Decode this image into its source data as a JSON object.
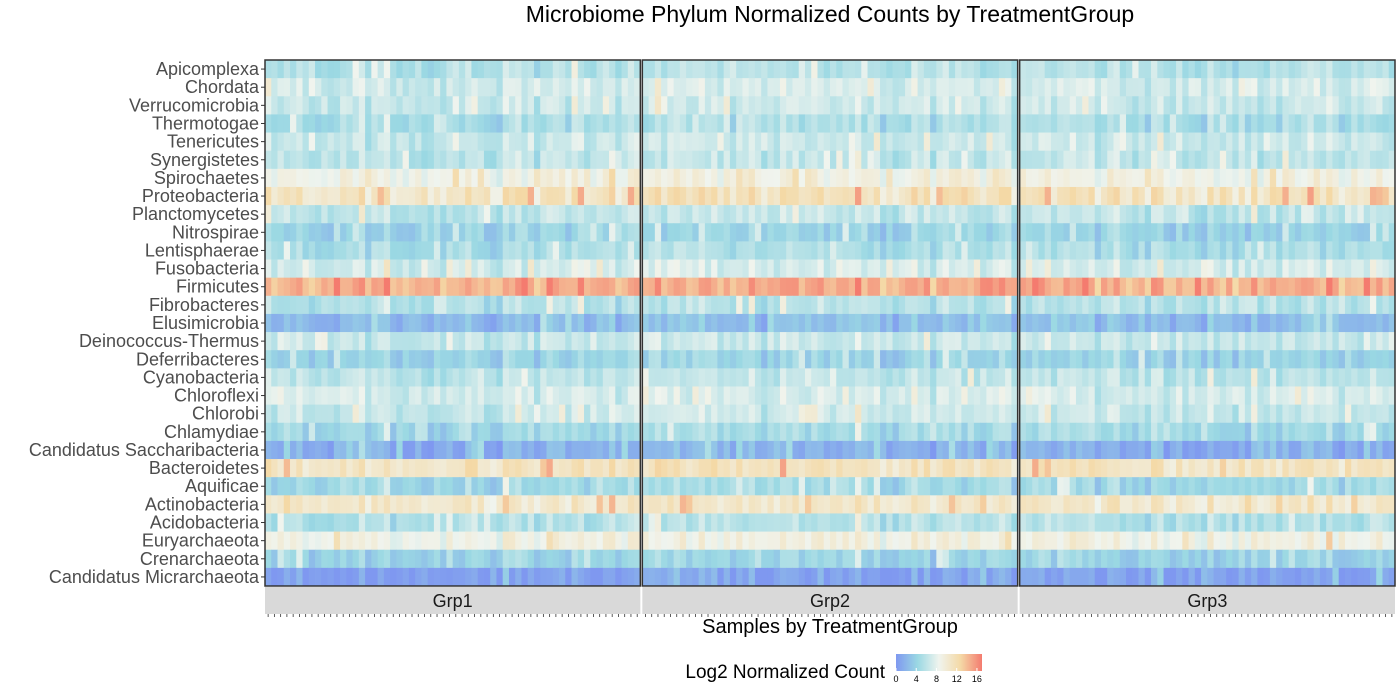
{
  "chart_data": {
    "type": "heatmap",
    "title": "Microbiome Phylum Normalized Counts by TreatmentGroup",
    "xlabel": "Samples by TreatmentGroup",
    "ylabel": "",
    "grid": false,
    "legend_position": "bottom",
    "rows": [
      "Apicomplexa",
      "Chordata",
      "Verrucomicrobia",
      "Thermotogae",
      "Tenericutes",
      "Synergistetes",
      "Spirochaetes",
      "Proteobacteria",
      "Planctomycetes",
      "Nitrospirae",
      "Lentisphaerae",
      "Fusobacteria",
      "Firmicutes",
      "Fibrobacteres",
      "Elusimicrobia",
      "Deinococcus-Thermus",
      "Deferribacteres",
      "Cyanobacteria",
      "Chloroflexi",
      "Chlorobi",
      "Chlamydiae",
      "Candidatus Saccharibacteria",
      "Bacteroidetes",
      "Aquificae",
      "Actinobacteria",
      "Acidobacteria",
      "Euryarchaeota",
      "Crenarchaeota",
      "Candidatus Micrarchaeota"
    ],
    "facets": [
      "Grp1",
      "Grp2",
      "Grp3"
    ],
    "samples_per_facet": 60,
    "row_baseline_log2": [
      5.5,
      7.0,
      6.5,
      5.0,
      6.5,
      6.0,
      9.0,
      11.0,
      6.0,
      4.0,
      5.0,
      7.0,
      14.5,
      5.5,
      2.5,
      6.5,
      4.0,
      6.0,
      7.0,
      6.5,
      4.5,
      1.5,
      11.0,
      4.5,
      10.5,
      5.5,
      9.0,
      4.0,
      0.5
    ],
    "colorbar": {
      "title": "Log2 Normalized Count",
      "ticks": [
        0,
        4,
        8,
        12,
        16
      ],
      "range": [
        0,
        17
      ],
      "colors": [
        "#7f98f0",
        "#9ad8e3",
        "#f0f4ee",
        "#f4d9a6",
        "#f47b6f"
      ]
    }
  }
}
